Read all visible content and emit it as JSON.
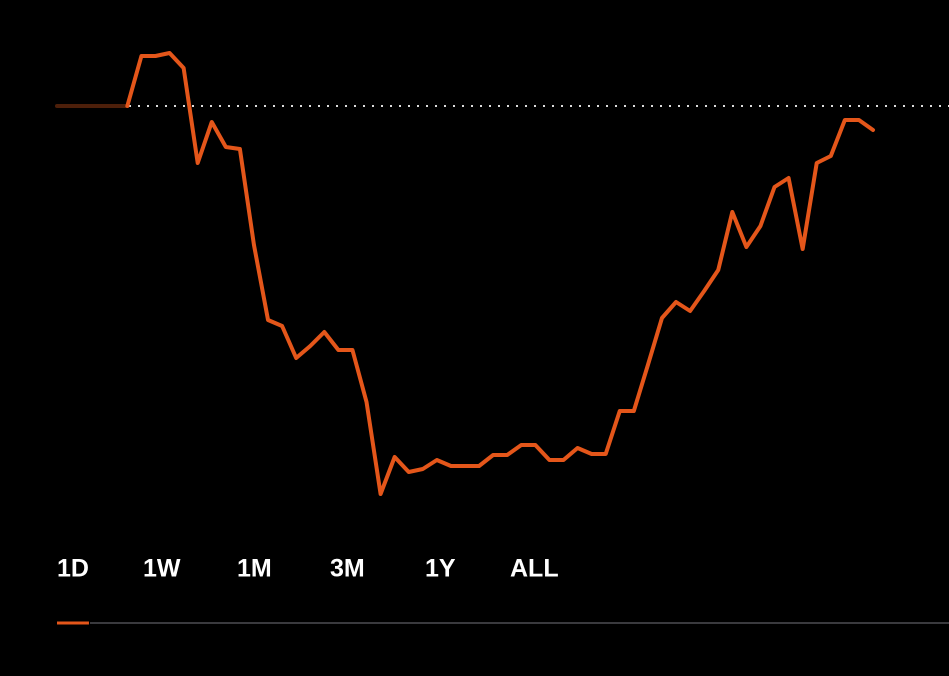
{
  "chart_data": {
    "type": "line",
    "values": [
      100,
      100,
      100,
      100,
      100,
      100,
      105.0,
      105.0,
      105.3,
      103.8,
      94.3,
      98.4,
      95.9,
      95.7,
      86.1,
      78.6,
      78.0,
      74.8,
      76.0,
      77.4,
      75.6,
      75.6,
      70.4,
      61.2,
      64.9,
      63.4,
      63.7,
      64.6,
      64.0,
      64.0,
      64.0,
      65.1,
      65.1,
      66.1,
      66.1,
      64.6,
      64.6,
      65.8,
      65.2,
      65.2,
      69.5,
      69.5,
      74.1,
      78.8,
      80.4,
      79.5,
      81.5,
      83.6,
      89.4,
      85.9,
      88.0,
      91.9,
      92.8,
      85.7,
      94.3,
      95.0,
      98.6,
      98.6,
      97.6
    ],
    "color": "#e4561a",
    "muted_color": "#4d1f0a",
    "muted_until": 5,
    "reference": 100,
    "ylim": [
      55,
      110
    ]
  },
  "tabs": [
    "1D",
    "1W",
    "1M",
    "3M",
    "1Y",
    "ALL"
  ],
  "active_tab": "1D"
}
